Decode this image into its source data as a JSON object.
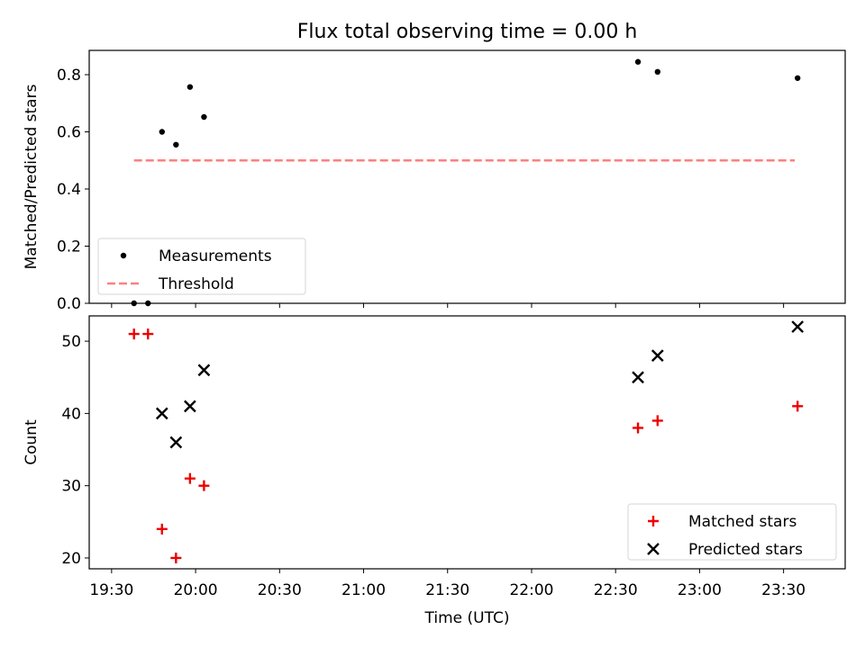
{
  "title": "Flux total observing time = 0.00 h",
  "colors": {
    "measurement": "#000000",
    "threshold": "#ff7f7f",
    "matched": "#ee0000",
    "predicted": "#000000",
    "axis": "#000000"
  },
  "chart_data": [
    {
      "type": "scatter",
      "ylabel": "Matched/Predicted stars",
      "ylim": [
        0,
        0.885
      ],
      "yticks": [
        "0.0",
        "0.2",
        "0.4",
        "0.6",
        "0.8"
      ],
      "ytick_values": [
        0,
        0.2,
        0.4,
        0.6,
        0.8
      ],
      "xlim": [
        "19:22",
        "23:52"
      ],
      "legend": {
        "position": "lower-left",
        "entries": [
          "Measurements",
          "Threshold"
        ]
      },
      "series": [
        {
          "name": "Measurements",
          "marker": "dot",
          "x": [
            "19:38",
            "19:43",
            "19:48",
            "19:53",
            "19:58",
            "20:03",
            "22:38",
            "22:45",
            "23:35"
          ],
          "y": [
            0.0,
            0.0,
            0.6,
            0.555,
            0.757,
            0.652,
            0.845,
            0.81,
            0.788
          ]
        },
        {
          "name": "Threshold",
          "marker": "dashed-line",
          "x": [
            "19:38",
            "23:34"
          ],
          "y": [
            0.5,
            0.5
          ]
        }
      ]
    },
    {
      "type": "scatter",
      "xlabel": "Time (UTC)",
      "ylabel": "Count",
      "ylim": [
        18.5,
        53.5
      ],
      "yticks": [
        "20",
        "30",
        "40",
        "50"
      ],
      "ytick_values": [
        20,
        30,
        40,
        50
      ],
      "xlim": [
        "19:22",
        "23:52"
      ],
      "xticks": [
        "19:30",
        "20:00",
        "20:30",
        "21:00",
        "21:30",
        "22:00",
        "22:30",
        "23:00",
        "23:30"
      ],
      "legend": {
        "position": "lower-right",
        "entries": [
          "Matched stars",
          "Predicted stars"
        ]
      },
      "series": [
        {
          "name": "Matched stars",
          "marker": "plus",
          "x": [
            "19:38",
            "19:43",
            "19:48",
            "19:53",
            "19:58",
            "20:03",
            "22:38",
            "22:45",
            "23:35"
          ],
          "y": [
            51,
            51,
            24,
            20,
            31,
            30,
            38,
            39,
            41
          ]
        },
        {
          "name": "Predicted stars",
          "marker": "x",
          "x": [
            "19:48",
            "19:53",
            "19:58",
            "20:03",
            "22:38",
            "22:45",
            "23:35"
          ],
          "y": [
            40,
            36,
            41,
            46,
            45,
            48,
            52
          ]
        }
      ]
    }
  ]
}
